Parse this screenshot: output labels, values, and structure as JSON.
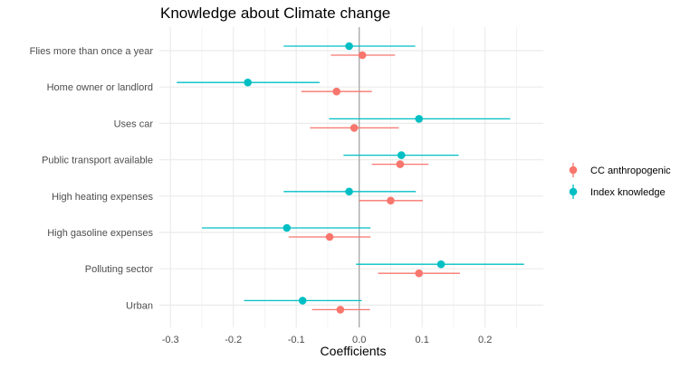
{
  "chart_data": {
    "type": "scatter",
    "subtype": "coefficient-plot-with-error-bars",
    "title": "Knowledge about Climate change",
    "xlabel": "Coefficients",
    "ylabel": "",
    "xlim": [
      -0.32,
      0.29
    ],
    "xticks": [
      -0.3,
      -0.2,
      -0.1,
      0.0,
      0.1,
      0.2
    ],
    "xtick_labels": [
      "-0.3",
      "-0.2",
      "-0.1",
      "0.0",
      "0.1",
      "0.2"
    ],
    "reference_line_x": 0,
    "grid": true,
    "legend_position": "right",
    "categories": [
      "Flies more than once a year",
      "Home owner or landlord",
      "Uses car",
      "Public transport available",
      "High heating expenses",
      "High gasoline expenses",
      "Polluting sector",
      "Urban"
    ],
    "series": [
      {
        "name": "CC anthropogenic",
        "color": "#F8766D",
        "estimate": [
          0.005,
          -0.036,
          -0.008,
          0.065,
          0.05,
          -0.047,
          0.095,
          -0.03
        ],
        "lower": [
          -0.045,
          -0.092,
          -0.078,
          0.02,
          0.0,
          -0.112,
          0.03,
          -0.075
        ],
        "upper": [
          0.057,
          0.02,
          0.063,
          0.11,
          0.101,
          0.018,
          0.16,
          0.017
        ]
      },
      {
        "name": "Index knowledge",
        "color": "#00BFC4",
        "estimate": [
          -0.016,
          -0.177,
          0.095,
          0.067,
          -0.016,
          -0.115,
          0.13,
          -0.09
        ],
        "lower": [
          -0.12,
          -0.29,
          -0.048,
          -0.025,
          -0.12,
          -0.25,
          -0.005,
          -0.183
        ],
        "upper": [
          0.089,
          -0.063,
          0.24,
          0.158,
          0.09,
          0.018,
          0.262,
          0.004
        ]
      }
    ]
  }
}
